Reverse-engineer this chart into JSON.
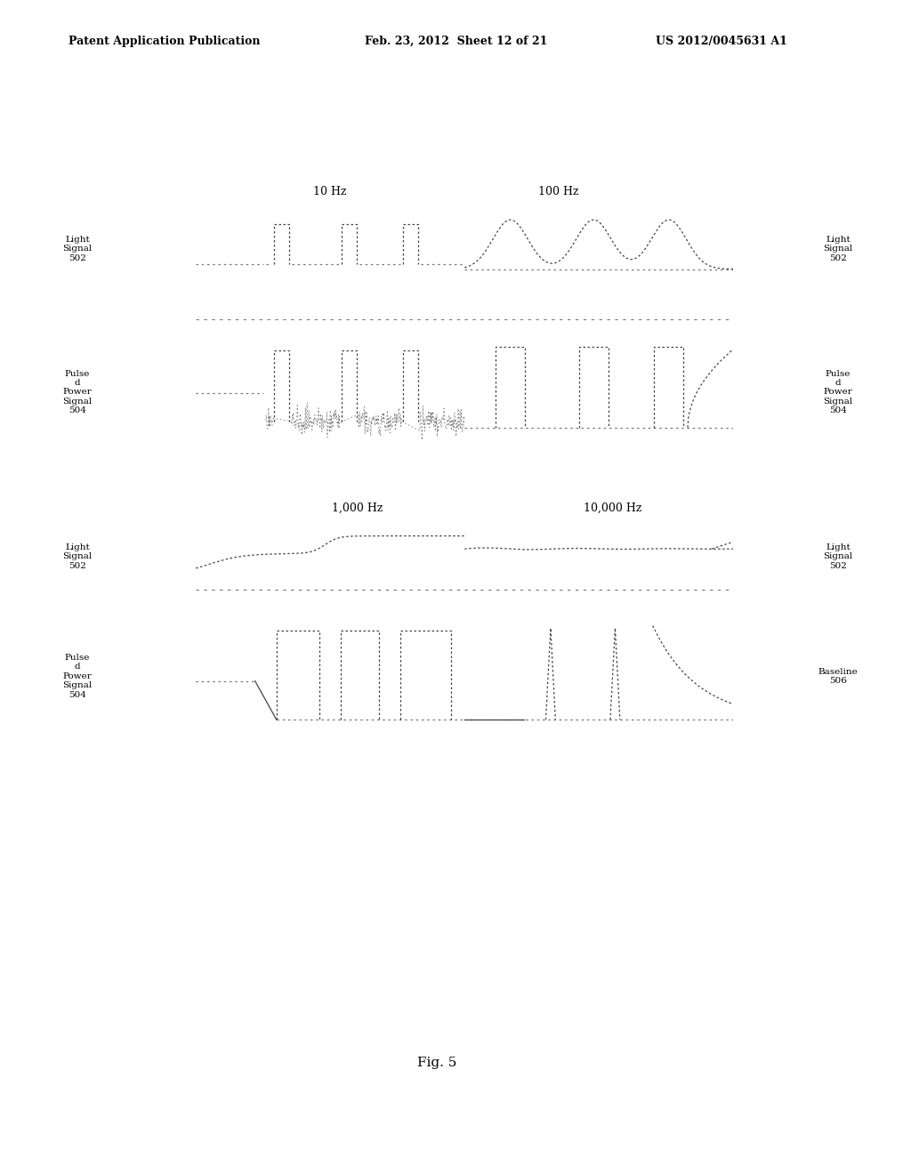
{
  "background_color": "#ffffff",
  "header_left": "Patent Application Publication",
  "header_center": "Feb. 23, 2012  Sheet 12 of 21",
  "header_right": "US 2012/0045631 A1",
  "footer_label": "Fig. 5",
  "title_10hz": "10 Hz",
  "title_100hz": "100 Hz",
  "title_1000hz": "1,000 Hz",
  "title_10000hz": "10,000 Hz",
  "line_color": "#444444",
  "dotted_color": "#777777",
  "text_color": "#000000",
  "header_fontsize": 9,
  "label_fontsize": 7.5,
  "title_fontsize": 9,
  "footer_fontsize": 11
}
